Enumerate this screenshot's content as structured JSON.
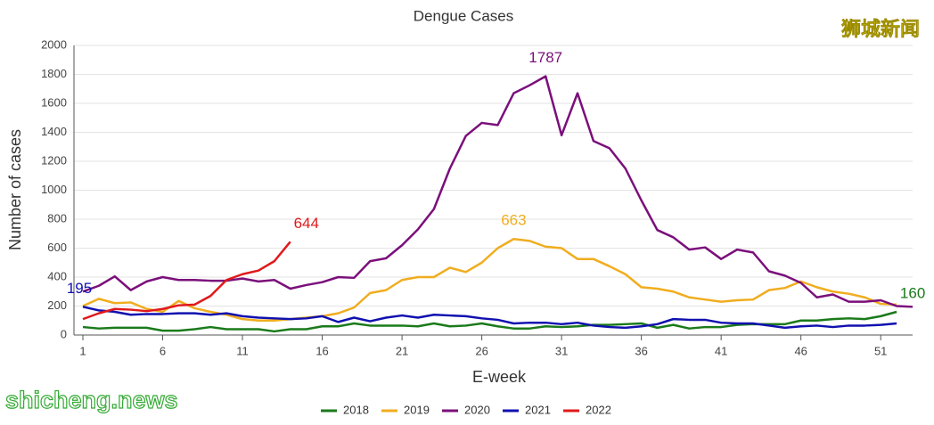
{
  "chart_data": {
    "type": "line",
    "title": "Dengue Cases",
    "xlabel": "E-week",
    "ylabel": "Number of cases",
    "x": [
      1,
      2,
      3,
      4,
      5,
      6,
      7,
      8,
      9,
      10,
      11,
      12,
      13,
      14,
      15,
      16,
      17,
      18,
      19,
      20,
      21,
      22,
      23,
      24,
      25,
      26,
      27,
      28,
      29,
      30,
      31,
      32,
      33,
      34,
      35,
      36,
      37,
      38,
      39,
      40,
      41,
      42,
      43,
      44,
      45,
      46,
      47,
      48,
      49,
      50,
      51,
      52,
      53
    ],
    "xlim": [
      1,
      53
    ],
    "xticks": [
      1,
      6,
      11,
      16,
      21,
      26,
      31,
      36,
      41,
      46,
      51
    ],
    "ylim": [
      0,
      2000
    ],
    "yticks": [
      0,
      200,
      400,
      600,
      800,
      1000,
      1200,
      1400,
      1600,
      1800,
      2000
    ],
    "grid": true,
    "legend": "bottom",
    "series": [
      {
        "name": "2018",
        "color": "#1a7a1a",
        "label_index": 51,
        "values": [
          55,
          45,
          50,
          50,
          50,
          30,
          30,
          40,
          55,
          40,
          40,
          40,
          25,
          40,
          40,
          60,
          60,
          80,
          65,
          65,
          65,
          60,
          80,
          60,
          65,
          80,
          60,
          45,
          45,
          60,
          55,
          60,
          70,
          70,
          75,
          80,
          50,
          70,
          45,
          55,
          55,
          70,
          75,
          75,
          75,
          100,
          100,
          110,
          115,
          110,
          130,
          160,
          null
        ]
      },
      {
        "name": "2019",
        "color": "#f0ad1e",
        "label_index": 27,
        "values": [
          200,
          250,
          220,
          225,
          180,
          160,
          235,
          185,
          160,
          140,
          110,
          100,
          100,
          110,
          120,
          130,
          150,
          190,
          290,
          310,
          380,
          400,
          400,
          465,
          435,
          500,
          600,
          663,
          650,
          610,
          600,
          525,
          525,
          475,
          420,
          330,
          320,
          300,
          260,
          245,
          230,
          240,
          245,
          310,
          325,
          370,
          330,
          300,
          285,
          260,
          215,
          210,
          null
        ]
      },
      {
        "name": "2020",
        "color": "#7b0f7b",
        "label_index": 29,
        "values": [
          300,
          340,
          405,
          310,
          370,
          400,
          380,
          380,
          375,
          375,
          390,
          370,
          380,
          320,
          345,
          365,
          400,
          395,
          510,
          530,
          620,
          730,
          870,
          1150,
          1375,
          1465,
          1450,
          1670,
          1725,
          1787,
          1380,
          1670,
          1340,
          1290,
          1150,
          930,
          725,
          675,
          590,
          605,
          525,
          590,
          570,
          440,
          410,
          360,
          260,
          280,
          230,
          230,
          240,
          200,
          195
        ]
      },
      {
        "name": "2021",
        "color": "#1010b0",
        "label_index": 0,
        "values": [
          195,
          170,
          160,
          140,
          145,
          145,
          150,
          150,
          140,
          150,
          130,
          120,
          115,
          110,
          115,
          130,
          90,
          120,
          95,
          120,
          135,
          120,
          140,
          135,
          130,
          115,
          105,
          80,
          85,
          85,
          75,
          85,
          65,
          55,
          50,
          60,
          75,
          110,
          105,
          105,
          85,
          80,
          80,
          65,
          50,
          60,
          65,
          55,
          65,
          65,
          70,
          80,
          null
        ]
      },
      {
        "name": "2022",
        "color": "#e0191b",
        "label_index": 13,
        "values": [
          110,
          150,
          180,
          175,
          165,
          180,
          205,
          210,
          270,
          380,
          420,
          445,
          510,
          644,
          null,
          null,
          null,
          null,
          null,
          null,
          null,
          null,
          null,
          null,
          null,
          null,
          null,
          null,
          null,
          null,
          null,
          null,
          null,
          null,
          null,
          null,
          null,
          null,
          null,
          null,
          null,
          null,
          null,
          null,
          null,
          null,
          null,
          null,
          null,
          null,
          null,
          null,
          null
        ]
      }
    ]
  },
  "watermarks": {
    "top": "狮城新闻",
    "bottom": "shicheng.news"
  }
}
